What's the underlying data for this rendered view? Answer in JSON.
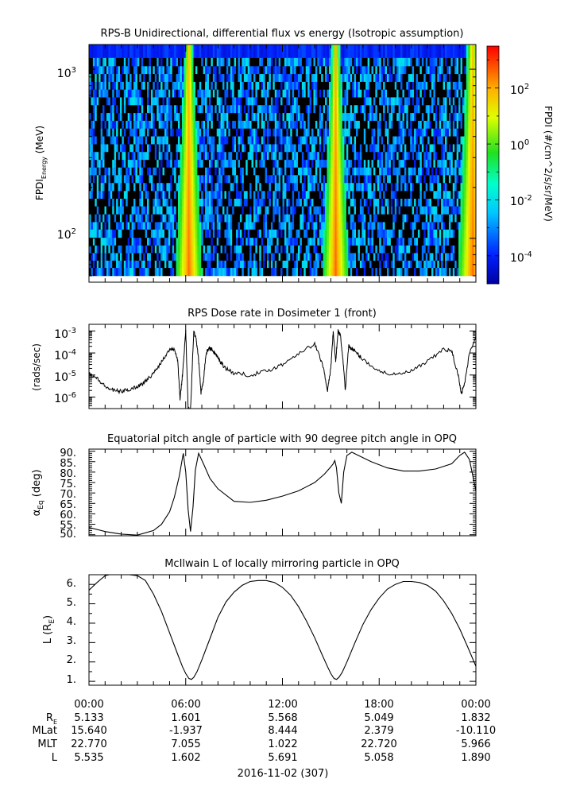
{
  "figure": {
    "panel_titles": [
      "RPS-B  Unidirectional, differential flux vs energy (Isotropic assumption)",
      "RPS  Dose rate in Dosimeter 1 (front)",
      "Equatorial pitch angle of particle with 90 degree pitch angle in OPQ",
      "McIlwain L of locally mirroring particle in OPQ"
    ],
    "spectrogram": {
      "ylabel_main": "FPDI",
      "ylabel_sub": "Energy",
      "ylabel_tail": " (MeV)",
      "yticks": [
        {
          "base": "10",
          "exp": "3",
          "value": 1000
        },
        {
          "base": "10",
          "exp": "2",
          "value": 100
        }
      ],
      "colorbar_label": "FPDI (#/cm^2/s/sr/MeV)",
      "colorbar_ticks": [
        {
          "base": "10",
          "exp": "2",
          "value": 2
        },
        {
          "base": "10",
          "exp": "0",
          "value": 0
        },
        {
          "base": "10",
          "exp": "-2",
          "value": -2
        },
        {
          "base": "10",
          "exp": "-4",
          "value": -4
        }
      ]
    },
    "dose": {
      "ylabel": "(rads/sec)",
      "yticks": [
        {
          "base": "10",
          "exp": "-3"
        },
        {
          "base": "10",
          "exp": "-4"
        },
        {
          "base": "10",
          "exp": "-5"
        },
        {
          "base": "10",
          "exp": "-6"
        }
      ]
    },
    "pitch": {
      "ylabel_main": "α",
      "ylabel_sub": "Eq",
      "ylabel_tail": " (deg)",
      "yticks": [
        "90.",
        "85.",
        "80.",
        "75.",
        "70.",
        "65.",
        "60.",
        "55.",
        "50."
      ]
    },
    "lshell": {
      "ylabel_main": "L (R",
      "ylabel_sub": "E",
      "ylabel_tail": ")",
      "yticks": [
        "6.",
        "5.",
        "4.",
        "3.",
        "2.",
        "1."
      ]
    },
    "xaxis": {
      "tick_labels": [
        "00:00",
        "06:00",
        "12:00",
        "18:00",
        "00:00"
      ],
      "date_label": "2016-11-02 (307)"
    },
    "ephemeris": {
      "rows": [
        {
          "label": "R",
          "label_sub": "E",
          "values": [
            "5.133",
            "1.601",
            "5.568",
            "5.049",
            "1.832"
          ]
        },
        {
          "label": "MLat",
          "label_sub": "",
          "values": [
            "15.640",
            "-1.937",
            "8.444",
            "2.379",
            "-10.110"
          ]
        },
        {
          "label": "MLT",
          "label_sub": "",
          "values": [
            "22.770",
            "7.055",
            "1.022",
            "22.720",
            "5.966"
          ]
        },
        {
          "label": "L",
          "label_sub": "",
          "values": [
            "5.535",
            "1.602",
            "5.691",
            "5.058",
            "1.890"
          ]
        }
      ]
    }
  },
  "chart_data": [
    {
      "type": "heatmap",
      "title": "RPS-B  Unidirectional, differential flux vs energy (Isotropic assumption)",
      "xlabel": "",
      "ylabel": "FPDI Energy (MeV)",
      "y_scale": "log",
      "ylim_approx": [
        55,
        1400
      ],
      "x_range_hours": [
        0,
        24
      ],
      "colorbar": {
        "label": "FPDI (#/cm^2/s/sr/MeV)",
        "scale": "log",
        "range_log10": [
          -5,
          3.5
        ],
        "colormap": "rainbow"
      },
      "enhancements": [
        {
          "center_hours": 6.2,
          "description": "high-flux band across all energies (radiation belt pass)"
        },
        {
          "center_hours": 15.3,
          "description": "high-flux band across all energies (radiation belt pass)"
        },
        {
          "center_hours": 23.8,
          "description": "rising flux at end of interval"
        }
      ]
    },
    {
      "type": "line",
      "title": "RPS  Dose rate in Dosimeter 1 (front)",
      "ylabel": "(rads/sec)",
      "y_scale": "log",
      "ylim": [
        3e-07,
        0.002
      ],
      "series": [
        {
          "x": [
            0,
            0.5,
            1.0,
            1.5,
            2.0,
            2.5,
            3.0,
            3.5,
            4.0,
            4.5,
            5.0,
            5.3,
            5.5,
            5.65,
            5.8,
            6.0,
            6.15,
            6.3,
            6.5,
            6.65,
            6.8,
            6.95,
            7.1,
            7.25,
            7.4,
            7.6,
            7.8,
            8.0,
            8.2,
            8.5,
            9.0,
            10.0,
            11.0,
            12.0,
            13.0,
            14.0,
            14.5,
            14.8,
            15.0,
            15.15,
            15.3,
            15.45,
            15.6,
            15.75,
            15.9,
            16.1,
            16.3,
            16.6,
            17.0,
            18.0,
            19.0,
            20.0,
            21.0,
            22.0,
            22.5,
            22.9,
            23.1,
            23.3,
            23.6,
            24.0
          ],
          "y": [
            1.2e-05,
            7e-06,
            3e-06,
            2e-06,
            1.8e-06,
            2.2e-06,
            3e-06,
            5e-06,
            1.2e-05,
            4e-05,
            0.00015,
            0.00016,
            5e-05,
            8e-07,
            1e-05,
            0.001,
            3e-07,
            3e-07,
            0.001,
            0.0004,
            5e-05,
            1.5e-06,
            6e-06,
            8e-05,
            0.00016,
            0.00015,
            0.0001,
            6e-05,
            3.5e-05,
            2e-05,
            1.2e-05,
            1e-05,
            1.5e-05,
            3e-05,
            0.0001,
            0.00025,
            3e-05,
            2e-06,
            2e-05,
            0.001,
            4e-05,
            0.001,
            0.0006,
            5e-05,
            2e-06,
            0.0002,
            0.00016,
            0.0001,
            5e-05,
            1.5e-05,
            1e-05,
            1.5e-05,
            4e-05,
            0.00015,
            0.00012,
            1e-05,
            1.5e-06,
            4e-06,
            0.0001,
            0.0006
          ]
        }
      ]
    },
    {
      "type": "line",
      "title": "Equatorial pitch angle of particle with 90 degree pitch angle in OPQ",
      "ylabel": "αEq (deg)",
      "ylim": [
        49.5,
        91
      ],
      "series": [
        {
          "x": [
            0,
            1,
            2,
            3,
            4,
            4.5,
            5,
            5.3,
            5.6,
            5.85,
            6.0,
            6.15,
            6.3,
            6.45,
            6.6,
            6.8,
            7.1,
            7.5,
            8,
            9,
            10,
            11,
            12,
            13,
            14,
            14.6,
            15.0,
            15.15,
            15.25,
            15.35,
            15.5,
            15.65,
            15.8,
            16.0,
            16.3,
            16.7,
            17.5,
            18.5,
            19.5,
            20.5,
            21.5,
            22.5,
            23.0,
            23.3,
            23.6,
            24.0
          ],
          "y": [
            53.5,
            51.5,
            50.3,
            49.8,
            52,
            55,
            61,
            68,
            78,
            89,
            80,
            62,
            51.5,
            63,
            81,
            89,
            84,
            77,
            72,
            66,
            65.5,
            66.5,
            68.5,
            71,
            75,
            79,
            82.5,
            84,
            85.5,
            82,
            70,
            65,
            80,
            88,
            89.5,
            88,
            85,
            82,
            80.5,
            80.5,
            81.5,
            84,
            88,
            89.5,
            86,
            71
          ]
        }
      ]
    },
    {
      "type": "line",
      "title": "McIlwain L of locally mirroring particle in OPQ",
      "ylabel": "L (RE)",
      "ylim": [
        0.8,
        6.5
      ],
      "series": [
        {
          "x": [
            0,
            0.5,
            1.0,
            1.5,
            2.0,
            2.5,
            3.0,
            3.5,
            4.0,
            4.5,
            5.0,
            5.5,
            5.8,
            6.0,
            6.2,
            6.35,
            6.5,
            6.7,
            7.0,
            7.5,
            8.0,
            8.5,
            9.0,
            9.5,
            10.0,
            10.5,
            11.0,
            11.5,
            12.0,
            12.5,
            13.0,
            13.5,
            14.0,
            14.5,
            14.8,
            15.0,
            15.2,
            15.35,
            15.5,
            15.7,
            16.0,
            16.5,
            17.0,
            17.5,
            18.0,
            18.5,
            19.0,
            19.5,
            20.0,
            20.5,
            21.0,
            21.5,
            22.0,
            22.5,
            23.0,
            23.5,
            24.0
          ],
          "y": [
            5.7,
            6.1,
            6.45,
            6.55,
            6.55,
            6.5,
            6.45,
            6.2,
            5.5,
            4.6,
            3.5,
            2.4,
            1.75,
            1.4,
            1.15,
            1.1,
            1.2,
            1.5,
            2.1,
            3.2,
            4.3,
            5.1,
            5.6,
            5.95,
            6.15,
            6.2,
            6.2,
            6.1,
            5.85,
            5.45,
            4.85,
            4.1,
            3.25,
            2.3,
            1.75,
            1.4,
            1.15,
            1.1,
            1.2,
            1.45,
            2.0,
            3.0,
            3.95,
            4.7,
            5.3,
            5.75,
            6.0,
            6.15,
            6.15,
            6.1,
            5.95,
            5.65,
            5.15,
            4.5,
            3.7,
            2.75,
            1.78
          ]
        }
      ]
    }
  ]
}
